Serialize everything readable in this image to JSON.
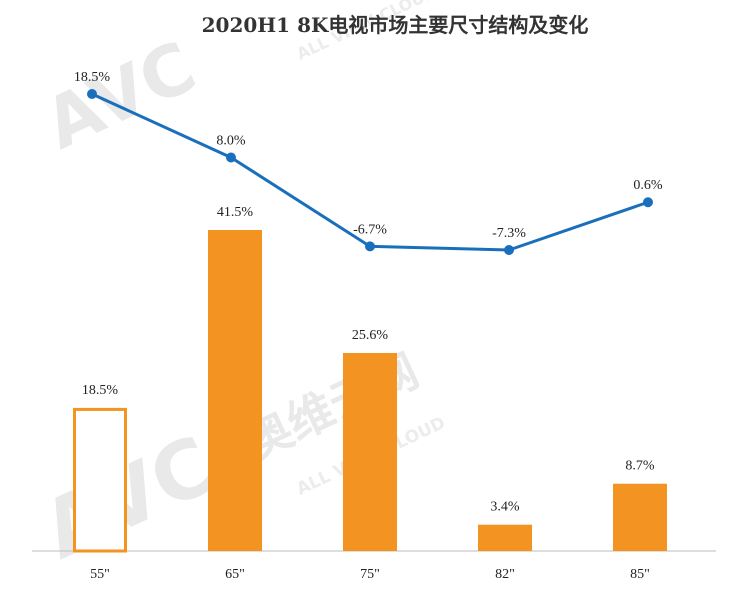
{
  "chart_data": {
    "type": "bar+line",
    "title": "2020H1 8K电视市场主要尺寸结构及变化",
    "categories": [
      "55\"",
      "65\"",
      "75\"",
      "82\"",
      "85\""
    ],
    "bar_series": {
      "values": [
        18.5,
        41.5,
        25.6,
        3.4,
        8.7
      ],
      "labels": [
        "18.5%",
        "41.5%",
        "25.6%",
        "3.4%",
        "8.7%"
      ],
      "color": "#f39322",
      "hollow_index": 0
    },
    "line_series": {
      "values": [
        18.5,
        8.0,
        -6.7,
        -7.3,
        0.6
      ],
      "labels": [
        "18.5%",
        "8.0%",
        "-6.7%",
        "-7.3%",
        "0.6%"
      ],
      "color": "#1a6fbd"
    },
    "bar_ylim": [
      0,
      45
    ],
    "line_ylim": [
      -10,
      20
    ],
    "grid": false,
    "legend": "none"
  },
  "watermark": {
    "logo": "AVC",
    "brand_cn": "奥维云网",
    "brand_en": "ALL VIEW CLOUD"
  }
}
